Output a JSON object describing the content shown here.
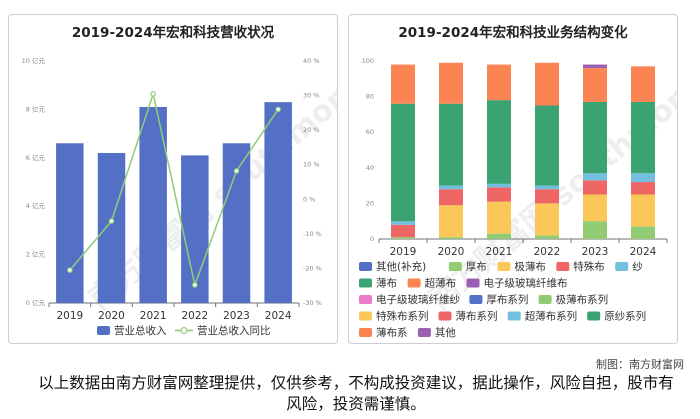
{
  "chart_data": [
    {
      "type": "bar",
      "title": "2019-2024年宏和科技营收状况",
      "categories": [
        "2019",
        "2020",
        "2021",
        "2022",
        "2023",
        "2024"
      ],
      "y_axis_left": {
        "ylim": [
          0,
          10
        ],
        "ticks": [
          "0 亿元",
          "2 亿元",
          "4 亿元",
          "6 亿元",
          "8 亿元",
          "10 亿元"
        ]
      },
      "y_axis_right": {
        "ylim": [
          -30,
          40
        ],
        "ticks": [
          "-30 %",
          "-20 %",
          "-10 %",
          "0 %",
          "10 %",
          "20 %",
          "30 %",
          "40 %"
        ]
      },
      "series": [
        {
          "name": "营业总收入",
          "type": "bar",
          "axis": "left",
          "color": "#5470c6",
          "values": [
            6.6,
            6.2,
            8.1,
            6.1,
            6.6,
            8.3
          ]
        },
        {
          "name": "营业总收入同比",
          "type": "line",
          "axis": "right",
          "color": "#91cc75",
          "values": [
            -20.5,
            -6.3,
            30.5,
            -24.8,
            8.2,
            26.0
          ]
        }
      ],
      "grid": false,
      "legend": "bottom"
    },
    {
      "type": "bar",
      "stacked": true,
      "title": "2019-2024年宏和科技业务结构变化",
      "categories": [
        "2019",
        "2020",
        "2021",
        "2022",
        "2023",
        "2024"
      ],
      "ylim": [
        0,
        100
      ],
      "yticks": [
        "0",
        "20",
        "40",
        "60",
        "80",
        "100"
      ],
      "series": [
        {
          "name": "其他(补充)",
          "color": "#5470c6",
          "values": [
            0,
            0,
            0,
            0,
            0,
            0
          ]
        },
        {
          "name": "厚布",
          "color": "#91cc75",
          "values": [
            1,
            1,
            3,
            2,
            10,
            7
          ]
        },
        {
          "name": "极薄布",
          "color": "#fac858",
          "values": [
            0,
            18,
            18,
            18,
            15,
            18
          ]
        },
        {
          "name": "特殊布",
          "color": "#ee6666",
          "values": [
            7,
            9,
            8,
            8,
            8,
            7
          ]
        },
        {
          "name": "纱",
          "color": "#73c0de",
          "values": [
            2,
            2,
            2,
            2,
            4,
            5
          ]
        },
        {
          "name": "薄布",
          "color": "#3ba272",
          "values": [
            66,
            46,
            47,
            45,
            40,
            40
          ]
        },
        {
          "name": "超薄布",
          "color": "#fc8452",
          "values": [
            22,
            23,
            20,
            24,
            19,
            20
          ]
        },
        {
          "name": "电子级玻璃纤维布",
          "color": "#9a60b4",
          "values": [
            0,
            0,
            0,
            0,
            2,
            0
          ]
        },
        {
          "name": "电子级玻璃纤维纱",
          "color": "#ea7ccc",
          "values": [
            0,
            0,
            0,
            0,
            0,
            0
          ]
        },
        {
          "name": "厚布系列",
          "color": "#5470c6",
          "values": [
            0,
            0,
            0,
            0,
            0,
            0
          ]
        },
        {
          "name": "极薄布系列",
          "color": "#91cc75",
          "values": [
            0,
            0,
            0,
            0,
            0,
            0
          ]
        },
        {
          "name": "特殊布系列",
          "color": "#fac858",
          "values": [
            0,
            0,
            0,
            0,
            0,
            0
          ]
        },
        {
          "name": "薄布系列",
          "color": "#ee6666",
          "values": [
            0,
            0,
            0,
            0,
            0,
            0
          ]
        },
        {
          "name": "超薄布系列",
          "color": "#73c0de",
          "values": [
            0,
            0,
            0,
            0,
            0,
            0
          ]
        },
        {
          "name": "原纱系列",
          "color": "#3ba272",
          "values": [
            0,
            0,
            0,
            0,
            0,
            0
          ]
        },
        {
          "name": "薄布系",
          "color": "#fc8452",
          "values": [
            0,
            0,
            0,
            0,
            0,
            0
          ]
        },
        {
          "name": "其他",
          "color": "#9a60b4",
          "values": [
            0,
            0,
            0,
            0,
            0,
            0
          ]
        }
      ],
      "grid": false,
      "legend": "bottom"
    }
  ],
  "watermark": "南方财富网 southmoney.com",
  "credit": "制图：南方财富网",
  "disclaimer": "以上数据由南方财富网整理提供，仅供参考，不构成投资建议，据此操作，风险自担，股市有风险，投资需谨慎。"
}
